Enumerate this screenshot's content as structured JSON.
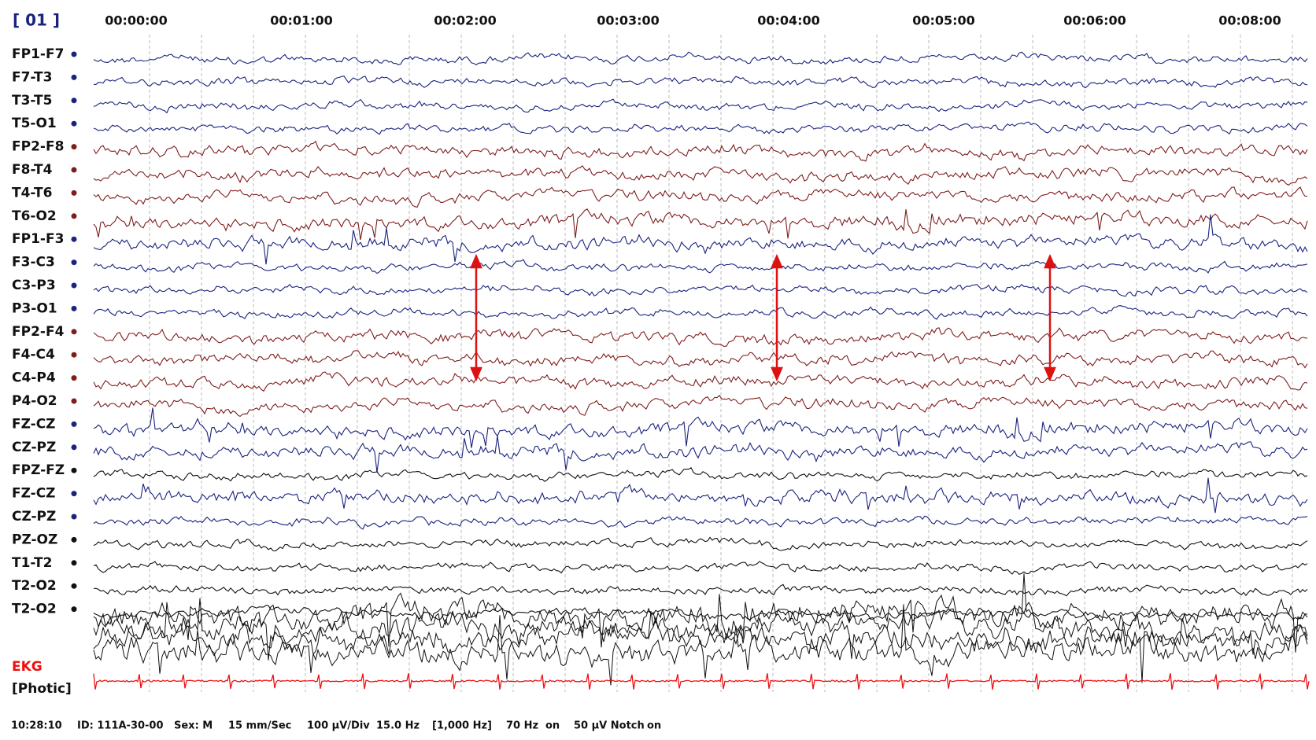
{
  "header": {
    "page": "[ 01 ]",
    "times": [
      "00:00:00",
      "00:01:00",
      "00:02:00",
      "00:03:00",
      "00:04:00",
      "00:05:00",
      "00:06:00",
      "00:08:00"
    ]
  },
  "channels": [
    {
      "label": "FP1-F7",
      "color": "#1a237e"
    },
    {
      "label": "F7-T3",
      "color": "#1a237e"
    },
    {
      "label": "T3-T5",
      "color": "#1a237e"
    },
    {
      "label": "T5-O1",
      "color": "#1a237e"
    },
    {
      "label": "FP2-F8",
      "color": "#7f1d1d"
    },
    {
      "label": "F8-T4",
      "color": "#7f1d1d"
    },
    {
      "label": "T4-T6",
      "color": "#7f1d1d"
    },
    {
      "label": "T6-O2",
      "color": "#7f1d1d"
    },
    {
      "label": "FP1-F3",
      "color": "#1a237e"
    },
    {
      "label": "F3-C3",
      "color": "#1a237e"
    },
    {
      "label": "C3-P3",
      "color": "#1a237e"
    },
    {
      "label": "P3-O1",
      "color": "#1a237e"
    },
    {
      "label": "FP2-F4",
      "color": "#7f1d1d"
    },
    {
      "label": "F4-C4",
      "color": "#7f1d1d"
    },
    {
      "label": "C4-P4",
      "color": "#7f1d1d"
    },
    {
      "label": "P4-O2",
      "color": "#7f1d1d"
    },
    {
      "label": "FZ-CZ",
      "color": "#1a237e"
    },
    {
      "label": "CZ-PZ",
      "color": "#1a237e"
    },
    {
      "label": "FPZ-FZ",
      "color": "#111111"
    },
    {
      "label": "FZ-CZ",
      "color": "#1a237e"
    },
    {
      "label": "CZ-PZ",
      "color": "#1a237e"
    },
    {
      "label": "PZ-OZ",
      "color": "#111111"
    },
    {
      "label": "T1-T2",
      "color": "#111111"
    },
    {
      "label": "T2-O2",
      "color": "#111111"
    },
    {
      "label": "T2-O2",
      "color": "#111111"
    }
  ],
  "ekg": {
    "label": "EKG",
    "color": "#ee1111"
  },
  "photic": {
    "label": "[Photic]"
  },
  "footer": [
    "10:28:10",
    "ID: 111A-30-00",
    "Sex: M",
    "15 mm/Sec",
    "100 µV/Div",
    "15.0 Hz",
    "[1,000 Hz]",
    "70 Hz",
    "on",
    "50 µV Notch",
    "on"
  ]
}
